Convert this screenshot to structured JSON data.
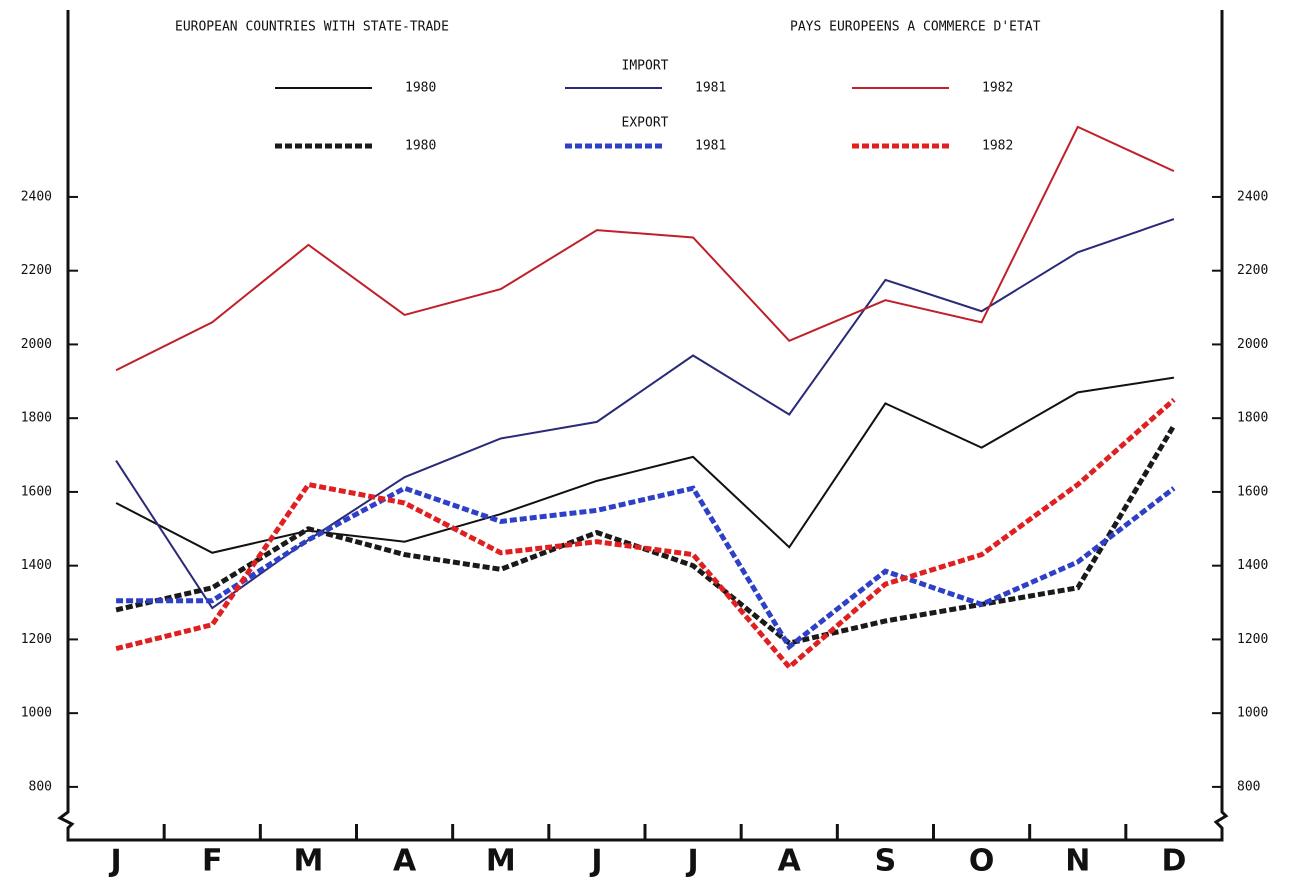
{
  "chart_data": {
    "type": "line",
    "title": "EUROPEAN COUNTRIES WITH STATE-TRADE",
    "subtitle": "PAYS EUROPEENS A COMMERCE D'ETAT",
    "legend_groups": [
      "IMPORT",
      "EXPORT"
    ],
    "categories": [
      "J",
      "F",
      "M",
      "A",
      "M",
      "J",
      "J",
      "A",
      "S",
      "O",
      "N",
      "D"
    ],
    "series": [
      {
        "name": "1980",
        "group": 0,
        "style": "solid",
        "color": "#111111",
        "values": [
          1570,
          1435,
          1495,
          1465,
          1540,
          1630,
          1695,
          1450,
          1840,
          1720,
          1870,
          1910
        ]
      },
      {
        "name": "1981",
        "group": 0,
        "style": "solid",
        "color": "#2a2a78",
        "values": [
          1685,
          1285,
          1470,
          1640,
          1745,
          1790,
          1970,
          1810,
          2175,
          2090,
          2250,
          2340
        ]
      },
      {
        "name": "1982",
        "group": 0,
        "style": "solid",
        "color": "#c0202a",
        "values": [
          1930,
          2060,
          2270,
          2080,
          2150,
          2310,
          2290,
          2010,
          2120,
          2060,
          2590,
          2470
        ]
      },
      {
        "name": "1980",
        "group": 1,
        "style": "dashed",
        "color": "#1a1a1a",
        "values": [
          1280,
          1340,
          1500,
          1430,
          1390,
          1490,
          1400,
          1190,
          1250,
          1295,
          1340,
          1780
        ]
      },
      {
        "name": "1981",
        "group": 1,
        "style": "dashed",
        "color": "#2f40c8",
        "values": [
          1305,
          1305,
          1470,
          1610,
          1520,
          1550,
          1610,
          1180,
          1385,
          1295,
          1410,
          1610
        ]
      },
      {
        "name": "1982",
        "group": 1,
        "style": "dashed",
        "color": "#e02020",
        "values": [
          1175,
          1240,
          1620,
          1570,
          1435,
          1465,
          1430,
          1125,
          1350,
          1430,
          1620,
          1850
        ]
      }
    ],
    "ylim": [
      656,
      2907
    ],
    "yticks": [
      800,
      1000,
      1200,
      1400,
      1600,
      1800,
      2000,
      2200,
      2400
    ],
    "y2lim": [
      656,
      2907
    ],
    "y2ticks": [
      800,
      1000,
      1200,
      1400,
      1600,
      1800,
      2000,
      2200,
      2400
    ]
  }
}
